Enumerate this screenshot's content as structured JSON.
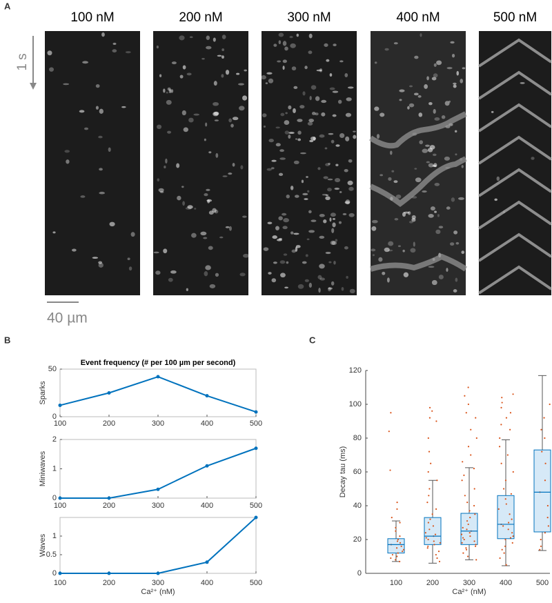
{
  "panel_labels": [
    "A",
    "B",
    "C"
  ],
  "panel_a": {
    "labels": [
      "100 nM",
      "200 nM",
      "300 nM",
      "400 nM",
      "500 nM"
    ],
    "time_scale": "1 s",
    "length_scale": "40 µm"
  },
  "chart_data": [
    {
      "type": "line",
      "title": "Event frequency (# per 100 µm per second)",
      "y_label": "Sparks",
      "x": [
        100,
        200,
        300,
        400,
        500
      ],
      "values": [
        12,
        25,
        42,
        22,
        5
      ],
      "color": "#0072bd",
      "xlim": [
        100,
        500
      ],
      "xticks": [
        100,
        200,
        300,
        400,
        500
      ],
      "ylim": [
        0,
        50
      ],
      "yticks": [
        0,
        50
      ]
    },
    {
      "type": "line",
      "y_label": "Miniwaves",
      "x": [
        100,
        200,
        300,
        400,
        500
      ],
      "values": [
        0,
        0,
        0.3,
        1.1,
        1.7
      ],
      "color": "#0072bd",
      "xlim": [
        100,
        500
      ],
      "xticks": [
        100,
        200,
        300,
        400,
        500
      ],
      "ylim": [
        0,
        2
      ],
      "yticks": [
        0,
        1,
        2
      ]
    },
    {
      "type": "line",
      "y_label": "Waves",
      "x_label": "Ca²⁺ (nM)",
      "x": [
        100,
        200,
        300,
        400,
        500
      ],
      "values": [
        0,
        0,
        0,
        0.3,
        1.5
      ],
      "color": "#0072bd",
      "xlim": [
        100,
        500
      ],
      "xticks": [
        100,
        200,
        300,
        400,
        500
      ],
      "ylim": [
        0,
        1.5
      ],
      "yticks": [
        0,
        0.5,
        1
      ]
    },
    {
      "type": "box",
      "y_label": "Decay tau (ms)",
      "x_label": "Ca²⁺ (nM)",
      "categories": [
        "100",
        "200",
        "300",
        "400",
        "500"
      ],
      "boxes": {
        "whisker_low": [
          7,
          6,
          8,
          4.5,
          13.5
        ],
        "q1": [
          12,
          17,
          17,
          20.5,
          24.5
        ],
        "median": [
          17,
          22,
          25,
          29,
          48
        ],
        "q3": [
          20.5,
          33,
          35.5,
          46,
          73
        ],
        "whisker_high": [
          31,
          55,
          62.5,
          79,
          117
        ]
      },
      "box_color": "#0072bd",
      "box_fill": "#cfe5f6",
      "point_color": "#d95319",
      "points": [
        [
          95,
          84,
          61,
          42,
          38,
          33,
          30,
          27,
          25,
          22,
          20,
          19,
          18,
          17,
          16,
          15,
          14,
          13,
          12,
          11,
          10,
          9,
          8,
          7
        ],
        [
          98,
          96,
          92,
          90,
          80,
          72,
          65,
          60,
          55,
          50,
          46,
          42,
          38,
          35,
          32,
          30,
          28,
          26,
          24,
          23,
          22,
          21,
          20,
          19,
          18,
          17,
          16,
          15,
          13,
          11,
          9,
          7
        ],
        [
          110,
          105,
          100,
          95,
          92,
          85,
          80,
          75,
          70,
          66,
          62,
          58,
          55,
          50,
          46,
          42,
          40,
          37,
          35,
          33,
          31,
          29,
          27,
          26,
          25,
          24,
          23,
          22,
          21,
          20,
          19,
          18,
          17,
          16,
          15,
          14,
          12,
          10,
          8
        ],
        [
          106,
          104,
          101,
          98,
          95,
          92,
          88,
          85,
          80,
          75,
          70,
          65,
          60,
          55,
          50,
          47,
          44,
          41,
          38,
          35,
          32,
          30,
          29,
          28,
          26,
          24,
          22,
          21,
          20,
          18,
          16,
          14,
          12,
          9,
          5
        ],
        [
          100,
          92,
          85,
          80,
          72,
          65,
          55,
          48,
          40,
          33,
          28,
          24,
          20,
          16,
          14
        ]
      ],
      "ylim": [
        0,
        120
      ],
      "yticks": [
        0,
        20,
        40,
        60,
        80,
        100,
        120
      ]
    }
  ]
}
